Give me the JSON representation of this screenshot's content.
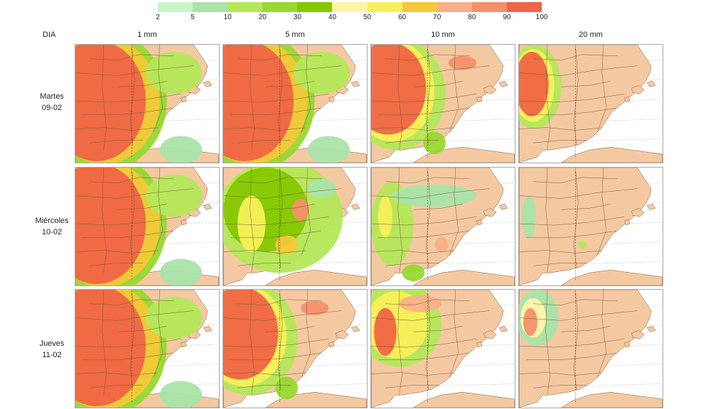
{
  "legend": {
    "ticks": [
      "2",
      "5",
      "10",
      "20",
      "30",
      "40",
      "50",
      "60",
      "70",
      "80",
      "90",
      "100"
    ],
    "colors": [
      "#c7f5c8",
      "#a9e4a9",
      "#b4e85a",
      "#98d830",
      "#84c800",
      "#fff4a8",
      "#f8f058",
      "#f4c838",
      "#f9b08a",
      "#f4906a",
      "#ef6545"
    ]
  },
  "header": {
    "row_label": "DIA",
    "columns": [
      "1 mm",
      "5 mm",
      "10 mm",
      "20 mm"
    ]
  },
  "rows": [
    {
      "day": "Martes",
      "date": "09-02"
    },
    {
      "day": "Miércoles",
      "date": "10-02"
    },
    {
      "day": "Jueves",
      "date": "11-02"
    }
  ],
  "map_colors": {
    "land": "#f4c9a2",
    "sea": "#ffffff",
    "border": "#7a5a3a",
    "grid": "#9a9a9a"
  },
  "panels": [
    {
      "row": 0,
      "col": 0,
      "coverage": "west-heavy",
      "max_pct": 100
    },
    {
      "row": 0,
      "col": 1,
      "coverage": "west-heavy",
      "max_pct": 100
    },
    {
      "row": 0,
      "col": 2,
      "coverage": "west",
      "max_pct": 100
    },
    {
      "row": 0,
      "col": 3,
      "coverage": "far-west",
      "max_pct": 100
    },
    {
      "row": 1,
      "col": 0,
      "coverage": "west-heavy",
      "max_pct": 100
    },
    {
      "row": 1,
      "col": 1,
      "coverage": "scattered",
      "max_pct": 100
    },
    {
      "row": 1,
      "col": 2,
      "coverage": "light-scattered",
      "max_pct": 70
    },
    {
      "row": 1,
      "col": 3,
      "coverage": "minimal",
      "max_pct": 40
    },
    {
      "row": 2,
      "col": 0,
      "coverage": "west-heavy",
      "max_pct": 100
    },
    {
      "row": 2,
      "col": 1,
      "coverage": "west",
      "max_pct": 100
    },
    {
      "row": 2,
      "col": 2,
      "coverage": "northwest",
      "max_pct": 100
    },
    {
      "row": 2,
      "col": 3,
      "coverage": "far-northwest",
      "max_pct": 90
    }
  ]
}
